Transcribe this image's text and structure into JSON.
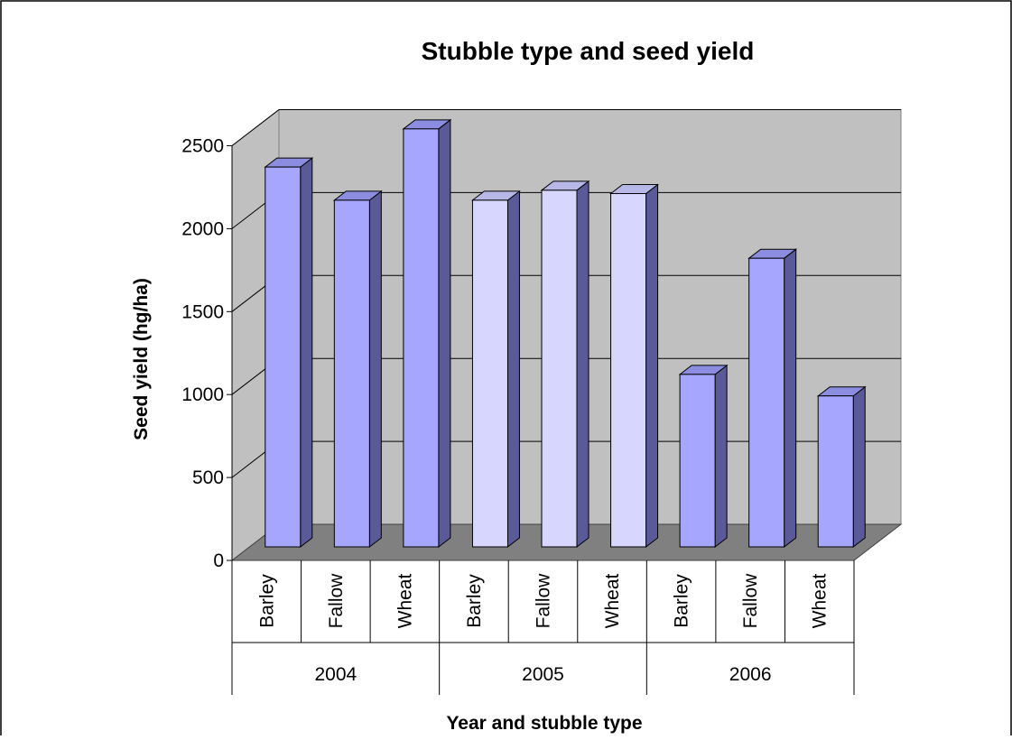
{
  "chart_data": {
    "type": "bar",
    "title": "Stubble type and seed yield",
    "xlabel": "Year and stubble type",
    "ylabel": "Seed yield  (hg/ha)",
    "ylim": [
      0,
      2500
    ],
    "yticks": [
      "0",
      "500",
      "1000",
      "1500",
      "2000",
      "2500"
    ],
    "grid": true,
    "legend": "none",
    "groups": [
      "2004",
      "2005",
      "2006"
    ],
    "categories": [
      "Barley",
      "Fallow",
      "Wheat",
      "Barley",
      "Fallow",
      "Wheat",
      "Barley",
      "Fallow",
      "Wheat"
    ],
    "group_index": [
      0,
      0,
      0,
      1,
      1,
      1,
      2,
      2,
      2
    ],
    "values": [
      2290,
      2090,
      2520,
      2090,
      2150,
      2130,
      1040,
      1740,
      910
    ],
    "colors": {
      "group_2004_2006_fill": "#A6A6FF",
      "group_2005_fill": "#D6D6FF",
      "wall": "#C0C0C0",
      "floor": "#808080",
      "gridline": "#000000"
    }
  }
}
